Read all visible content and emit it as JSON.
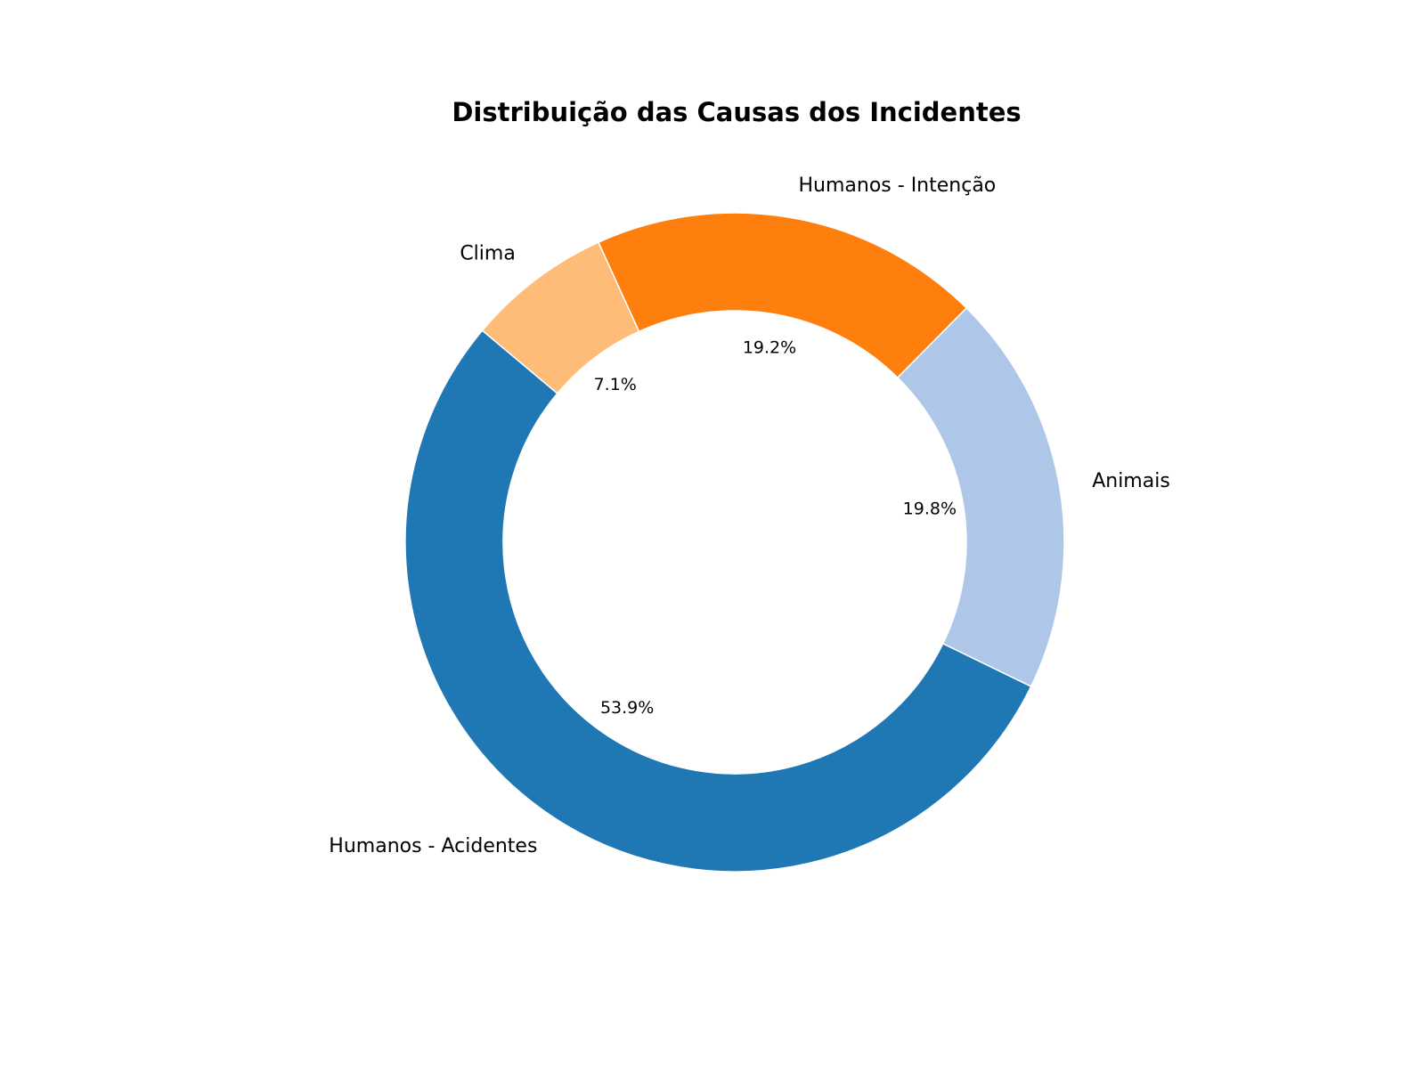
{
  "chart_data": {
    "type": "pie",
    "variant": "donut",
    "title": "Distribuição das Causas dos Incidentes",
    "slices": [
      {
        "label": "Humanos - Acidentes",
        "value": 53.9,
        "pct_label": "53.9%",
        "color": "#1f77b4"
      },
      {
        "label": "Animais",
        "value": 19.8,
        "pct_label": "19.8%",
        "color": "#aec7e8"
      },
      {
        "label": "Humanos - Intenção",
        "value": 19.2,
        "pct_label": "19.2%",
        "color": "#ff7f0e"
      },
      {
        "label": "Clima",
        "value": 7.1,
        "pct_label": "7.1%",
        "color": "#ffbb78"
      }
    ],
    "legend": "none"
  }
}
